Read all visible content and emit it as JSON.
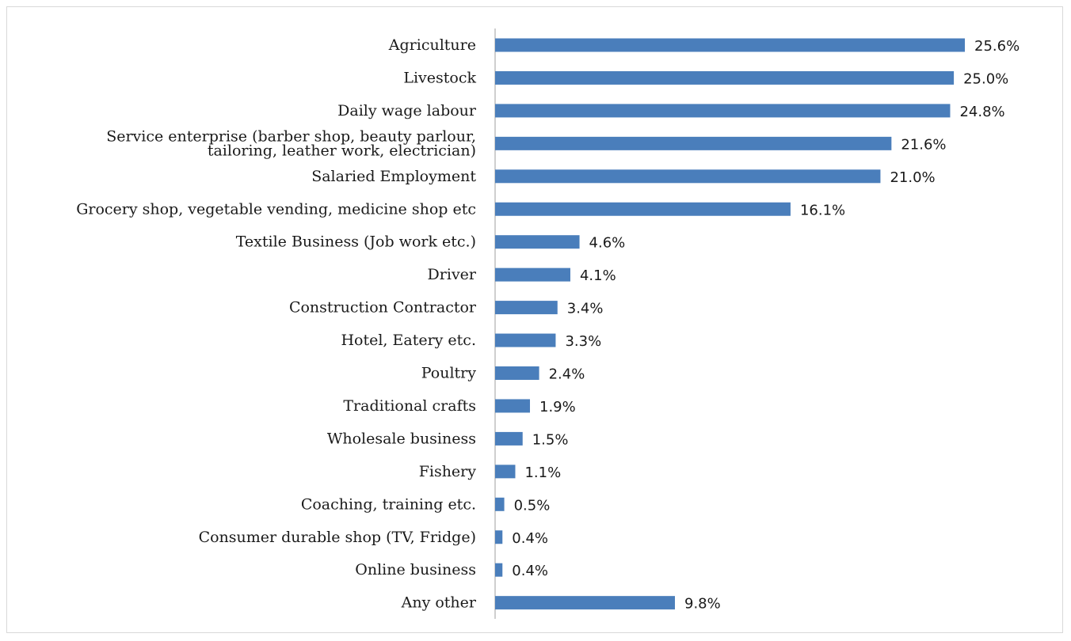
{
  "chart_data": {
    "type": "bar",
    "orientation": "horizontal",
    "categories": [
      [
        "Agriculture"
      ],
      [
        "Livestock"
      ],
      [
        "Daily wage labour"
      ],
      [
        "Service enterprise (barber shop, beauty parlour,",
        "tailoring, leather work, electrician)"
      ],
      [
        "Salaried Employment"
      ],
      [
        "Grocery shop, vegetable vending, medicine shop etc"
      ],
      [
        "Textile Business (Job work etc.)"
      ],
      [
        "Driver"
      ],
      [
        "Construction Contractor"
      ],
      [
        "Hotel, Eatery etc."
      ],
      [
        "Poultry"
      ],
      [
        "Traditional crafts"
      ],
      [
        "Wholesale business"
      ],
      [
        "Fishery"
      ],
      [
        "Coaching, training etc."
      ],
      [
        "Consumer durable shop (TV, Fridge)"
      ],
      [
        "Online business"
      ],
      [
        "Any other"
      ]
    ],
    "values": [
      25.6,
      25.0,
      24.8,
      21.6,
      21.0,
      16.1,
      4.6,
      4.1,
      3.4,
      3.3,
      2.4,
      1.9,
      1.5,
      1.1,
      0.5,
      0.4,
      0.4,
      9.8
    ],
    "value_labels": [
      "25.6%",
      "25.0%",
      "24.8%",
      "21.6%",
      "21.0%",
      "16.1%",
      "4.6%",
      "4.1%",
      "3.4%",
      "3.3%",
      "2.4%",
      "1.9%",
      "1.5%",
      "1.1%",
      "0.5%",
      "0.4%",
      "0.4%",
      "9.8%"
    ],
    "bar_color": "#4a7ebb",
    "axis_color": "#bfbfbf",
    "grid": false,
    "legend": "none",
    "xlim": [
      0,
      25.6
    ]
  }
}
